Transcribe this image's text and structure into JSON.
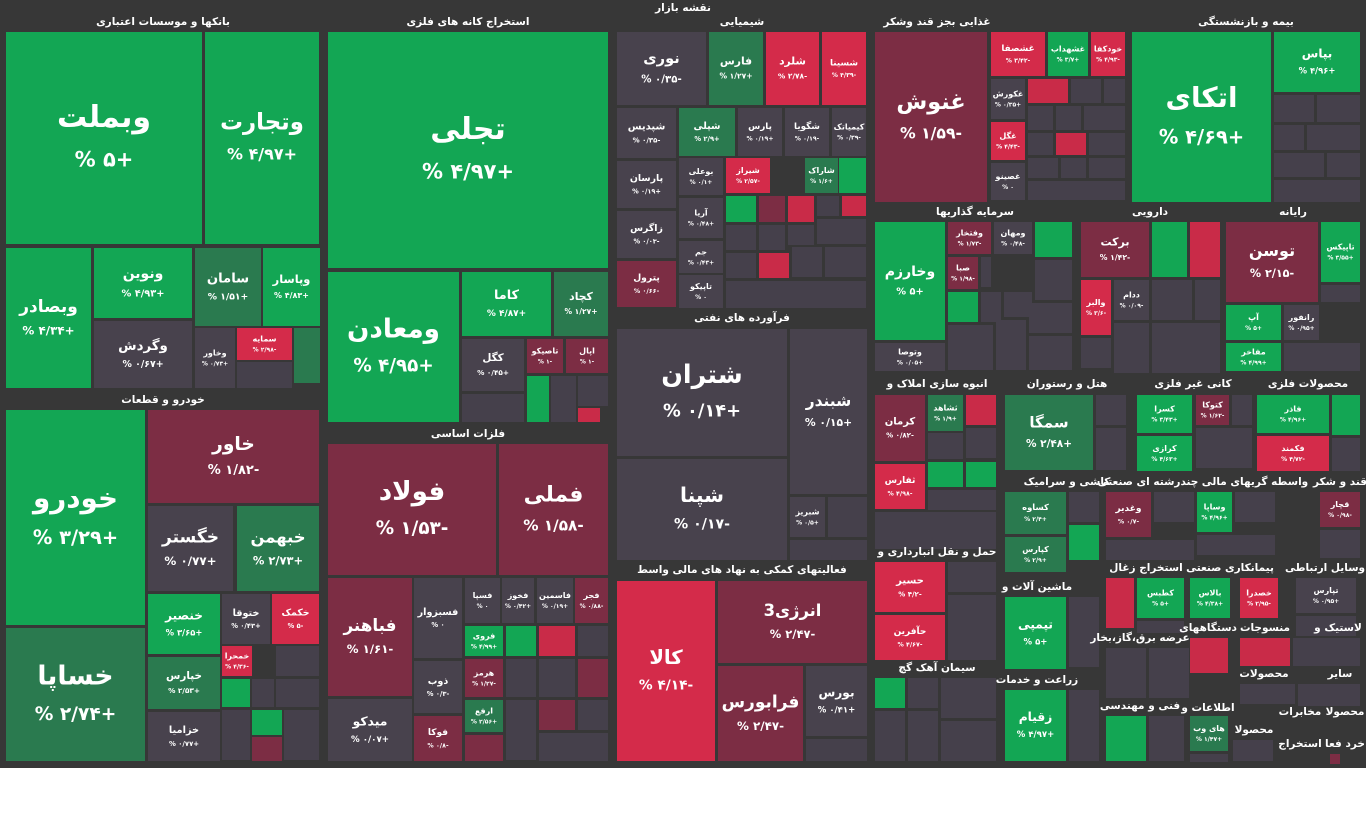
{
  "chart_data": {
    "type": "treemap",
    "title": "نقشه بازار",
    "groups": [
      {
        "name": "بانکها و موسسات اعتباری",
        "categories": [
          "وبملت",
          "وتجارت",
          "وبصادر",
          "ونوین",
          "سامان",
          "وپاسار",
          "وگردش",
          "وخاور",
          "سمایه"
        ],
        "values": [
          5,
          4.97,
          4.34,
          4.93,
          1.51,
          4.83,
          0.67,
          0.73,
          -2.98
        ],
        "value_labels": [
          "+۵ %",
          "+۴/۹۷ %",
          "+۴/۳۴ %",
          "+۴/۹۳ %",
          "+۱/۵۱ %",
          "+۴/۸۳ %",
          "+۰/۶۷ %",
          "+۰/۷۳ %",
          "-۲/۹۸ %"
        ]
      },
      {
        "name": "خودرو و قطعات",
        "categories": [
          "خودرو",
          "خساپا",
          "خاور",
          "خگستر",
          "خبهمن",
          "خنصیر",
          "ختوقا",
          "خکمک",
          "خپارس",
          "خمحرا",
          "خزامیا"
        ],
        "values": [
          3.29,
          2.74,
          -1.82,
          0.77,
          2.73,
          3.65,
          0.43,
          -5,
          2.53,
          -4.36,
          0.77
        ],
        "value_labels": [
          "+۳/۲۹ %",
          "+۲/۷۴ %",
          "-۱/۸۲ %",
          "+۰/۷۷ %",
          "+۲/۷۳ %",
          "+۳/۶۵ %",
          "+۰/۴۳ %",
          "-۵ %",
          "+۲/۵۳ %",
          "-۴/۳۶ %",
          "+۰/۷۷ %"
        ]
      },
      {
        "name": "استخراج کانه های فلزی",
        "categories": [
          "تجلی",
          "ومعادن",
          "کاما",
          "کچاد",
          "کگل",
          "تاصیکو",
          "اپال"
        ],
        "values": [
          4.97,
          4.95,
          4.87,
          1.27,
          0.45,
          -1,
          -1
        ],
        "value_labels": [
          "+۴/۹۷ %",
          "+۴/۹۵ %",
          "+۴/۸۷ %",
          "+۱/۲۷ %",
          "+۰/۴۵ %",
          "-۱ %",
          "-۱ %"
        ]
      },
      {
        "name": "فلزات اساسی",
        "categories": [
          "فولاد",
          "فملی",
          "فباهنر",
          "میدکو",
          "فسبزوار",
          "فسپا",
          "فخوز",
          "فاسمین",
          "فجر",
          "فروی",
          "هرمز",
          "ذوب",
          "ارفع",
          "فوکا"
        ],
        "values": [
          -1.53,
          -1.58,
          -1.61,
          0.07,
          0,
          0,
          0.42,
          0.19,
          -0.88,
          4.99,
          -1.27,
          -0.3,
          2.56,
          -0.8
        ],
        "value_labels": [
          "-۱/۵۳ %",
          "-۱/۵۸ %",
          "-۱/۶۱ %",
          "+۰/۰۷ %",
          "۰ %",
          "۰ %",
          "+۰/۴۲ %",
          "+۰/۱۹ %",
          "-۰/۸۸ %",
          "+۴/۹۹ %",
          "-۱/۲۷ %",
          "-۰/۳ %",
          "+۲/۵۶ %",
          "-۰/۸ %"
        ]
      },
      {
        "name": "شیمیایی",
        "categories": [
          "نوری",
          "فارس",
          "شلرد",
          "شسینا",
          "شپدیس",
          "شپلی",
          "پارس",
          "شگویا",
          "کیمیاتک",
          "پارسان",
          "بوعلی",
          "شیراز",
          "شاراک",
          "زاگرس",
          "آریا",
          "جم",
          "پترول",
          "تاپیکو"
        ],
        "values": [
          -0.35,
          1.27,
          -2.78,
          -4.39,
          -0.35,
          2.9,
          0.19,
          -0.19,
          -0.39,
          0.19,
          0.1,
          -2.57,
          1.6,
          -0.03,
          0.48,
          0.43,
          -0.66,
          0
        ],
        "value_labels": [
          "-۰/۳۵ %",
          "+۱/۲۷ %",
          "-۲/۷۸ %",
          "-۴/۳۹ %",
          "-۰/۳۵ %",
          "+۲/۹ %",
          "+۰/۱۹ %",
          "-۰/۱۹ %",
          "-۰/۳۹ %",
          "+۰/۱۹ %",
          "+۰/۱ %",
          "-۲/۵۷ %",
          "+۱/۶ %",
          "-۰/۰۳ %",
          "+۰/۴۸ %",
          "+۰/۴۳ %",
          "-۰/۶۶ %",
          "۰ %"
        ]
      },
      {
        "name": "فرآورده های نفتی",
        "categories": [
          "شتران",
          "شپنا",
          "شبندر",
          "شبریز"
        ],
        "values": [
          0.14,
          -0.17,
          0.15,
          0.5
        ],
        "value_labels": [
          "+۰/۱۴ %",
          "-۰/۱۷ %",
          "+۰/۱۵ %",
          "+۰/۵ %"
        ]
      },
      {
        "name": "فعالیتهای کمکی به نهاد های مالی واسط",
        "categories": [
          "کالا",
          "انرژی3",
          "فرابورس",
          "بورس"
        ],
        "values": [
          -4.14,
          -2.47,
          -2.47,
          0.41
        ],
        "value_labels": [
          "-۴/۱۴ %",
          "-۲/۴۷ %",
          "-۲/۴۷ %",
          "+۰/۴۱ %"
        ]
      },
      {
        "name": "غذایی بجز قند وشکر",
        "categories": [
          "غنوش",
          "غشصفا",
          "غشهداب",
          "خودکفا",
          "غکورش",
          "غگل",
          "غصینو"
        ],
        "values": [
          -1.59,
          -3.42,
          3.7,
          -4.93,
          0.35,
          -4.43,
          0
        ],
        "value_labels": [
          "-۱/۵۹ %",
          "-۳/۴۲ %",
          "+۳/۷ %",
          "-۴/۹۳ %",
          "+۰/۳۵ %",
          "-۴/۴۳ %",
          "۰ %"
        ]
      },
      {
        "name": "بیمه و بازنشستگی",
        "categories": [
          "اتکای",
          "بپاس"
        ],
        "values": [
          4.69,
          4.96
        ],
        "value_labels": [
          "+۴/۶۹ %",
          "+۴/۹۶ %"
        ]
      },
      {
        "name": "سرمایه گذاریها",
        "categories": [
          "وخارزم",
          "وفتخار",
          "ومهان",
          "صبا",
          "وتوصا"
        ],
        "values": [
          5,
          -1.73,
          -0.48,
          -1.98,
          0.05
        ],
        "value_labels": [
          "+۵ %",
          "-۱/۷۳ %",
          "-۰/۴۸ %",
          "-۱/۹۸ %",
          "+۰/۰۵ %"
        ]
      },
      {
        "name": "دارویی",
        "categories": [
          "برکت",
          "والبر",
          "ددام"
        ],
        "values": [
          -1.42,
          -3.6,
          -0.09
        ],
        "value_labels": [
          "-۱/۴۲ %",
          "-۳/۶ %",
          "-۰/۰۹ %"
        ]
      },
      {
        "name": "رایانه",
        "categories": [
          "توسن",
          "تاپیکس",
          "آپ",
          "رانفور",
          "مفاخر"
        ],
        "values": [
          -2.15,
          3.55,
          5,
          0.95,
          4.99
        ],
        "value_labels": [
          "-۲/۱۵ %",
          "+۳/۵۵ %",
          "+۵ %",
          "+۰/۹۵ %",
          "+۴/۹۹ %"
        ]
      },
      {
        "name": "انبوه سازی املاک و",
        "categories": [
          "کرمان",
          "ثشاهد",
          "ثفارس"
        ],
        "values": [
          -0.82,
          1.9,
          -4.98
        ],
        "value_labels": [
          "-۰/۸۲ %",
          "+۱/۹ %",
          "-۴/۹۸ %"
        ]
      },
      {
        "name": "حمل و نقل انبارداری و",
        "categories": [
          "حسیر",
          "حآفرین"
        ],
        "values": [
          -4.2,
          -4.67
        ],
        "value_labels": [
          "-۴/۲ %",
          "-۴/۶۷ %"
        ]
      },
      {
        "name": "سیمان آهک گچ",
        "categories": [],
        "values": [],
        "value_labels": []
      },
      {
        "name": "هتل و رستوران",
        "categories": [
          "سمگا"
        ],
        "values": [
          2.48
        ],
        "value_labels": [
          "+۲/۴۸ %"
        ]
      },
      {
        "name": "کاشی و سرامیک",
        "categories": [
          "کساوه",
          "کپارس"
        ],
        "values": [
          2.4,
          2.9
        ],
        "value_labels": [
          "+۲/۴ %",
          "+۲/۹ %"
        ]
      },
      {
        "name": "ماشین آلات و",
        "categories": [
          "تپمپی"
        ],
        "values": [
          5
        ],
        "value_labels": [
          "+۵ %"
        ]
      },
      {
        "name": "زراعت و خدمات",
        "categories": [
          "زقیام"
        ],
        "values": [
          4.97
        ],
        "value_labels": [
          "+۴/۹۷ %"
        ]
      },
      {
        "name": "کانی غیر فلزی",
        "categories": [
          "کسرا",
          "کرازی",
          "کتوکا"
        ],
        "values": [
          3.43,
          4.63,
          -1.62
        ],
        "value_labels": [
          "+۳/۴۳ %",
          "+۴/۶۳ %",
          "-۱/۶۲ %"
        ]
      },
      {
        "name": "محصولات فلزی",
        "categories": [
          "فاذر",
          "فکمند"
        ],
        "values": [
          4.96,
          -4.72
        ],
        "value_labels": [
          "+۴/۹۶ %",
          "-۴/۷۲ %"
        ]
      },
      {
        "name": "واسطه گریهای مالی",
        "categories": [
          "وساپا"
        ],
        "values": [
          4.96
        ],
        "value_labels": [
          "+۴/۹۶ %"
        ]
      },
      {
        "name": "چندرشته ای صنعتی",
        "categories": [
          "وغدیر"
        ],
        "values": [
          -0.7
        ],
        "value_labels": [
          "-۰/۷ %"
        ]
      },
      {
        "name": "قند و شکر",
        "categories": [
          "قچار"
        ],
        "values": [
          -0.98
        ],
        "value_labels": [
          "-۰/۹۸ %"
        ]
      },
      {
        "name": "استخراج زغال",
        "categories": [
          "کطبس"
        ],
        "values": [
          5
        ],
        "value_labels": [
          "+۵ %"
        ]
      },
      {
        "name": "پیمانکاری صنعتی",
        "categories": [
          "بالاس"
        ],
        "values": [
          4.38
        ],
        "value_labels": [
          "+۴/۳۸ %"
        ]
      },
      {
        "name": "وسایل ارتباطی",
        "categories": [
          "خصدرا",
          "تپارس"
        ],
        "values": [
          -2.95,
          0.95
        ],
        "value_labels": [
          "-۲/۹۵ %",
          "+۰/۹۵ %"
        ]
      },
      {
        "name": "عرضه برق،گاز،بخار",
        "categories": [],
        "values": [],
        "value_labels": []
      },
      {
        "name": "دستگاههای",
        "categories": [],
        "values": [],
        "value_labels": []
      },
      {
        "name": "منسوجات",
        "categories": [],
        "values": [],
        "value_labels": []
      },
      {
        "name": "لاستیک و",
        "categories": [],
        "values": [],
        "value_labels": []
      },
      {
        "name": "محصولات",
        "categories": [],
        "values": [],
        "value_labels": []
      },
      {
        "name": "سایر",
        "categories": [],
        "values": [],
        "value_labels": []
      },
      {
        "name": "اطلاعات و",
        "categories": [
          "های وب"
        ],
        "values": [
          1.47
        ],
        "value_labels": [
          "+۱/۴۷ %"
        ]
      },
      {
        "name": "فنی و مهندسی",
        "categories": [],
        "values": [],
        "value_labels": []
      },
      {
        "name": "محصولا",
        "categories": [],
        "values": [],
        "value_labels": []
      },
      {
        "name": "مخابرات",
        "categories": [],
        "values": [],
        "value_labels": []
      },
      {
        "name": "محصولا",
        "categories": [],
        "values": [],
        "value_labels": []
      },
      {
        "name": "استخراج",
        "categories": [],
        "values": [],
        "value_labels": []
      },
      {
        "name": "خرد فعا",
        "categories": [],
        "values": [],
        "value_labels": []
      }
    ]
  }
}
